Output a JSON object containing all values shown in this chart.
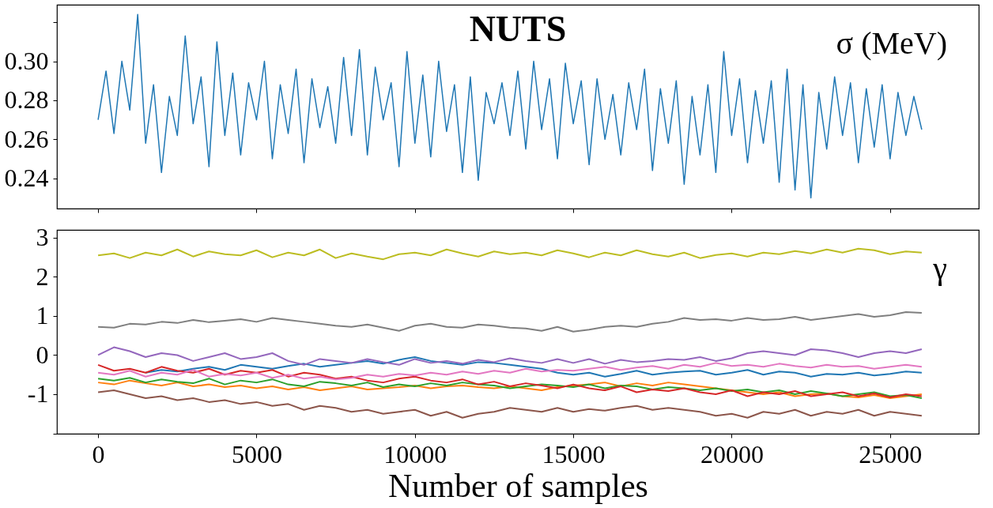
{
  "chart_data": [
    {
      "type": "line",
      "title": "NUTS",
      "annotations": [
        "σ (MeV)"
      ],
      "tick_labels": "y",
      "xlim": [
        -1300,
        27800
      ],
      "xticks": [
        0,
        5000,
        10000,
        15000,
        20000,
        25000
      ],
      "ylim": [
        0.2245,
        0.329
      ],
      "yticks": [
        {
          "value": 0.24,
          "label": "0.24"
        },
        {
          "value": 0.26,
          "label": "0.26"
        },
        {
          "value": 0.28,
          "label": "0.28"
        },
        {
          "value": 0.3,
          "label": "0.30"
        },
        {
          "value": 0.32,
          "label": null
        }
      ],
      "x": [
        0,
        250,
        500,
        750,
        1000,
        1250,
        1500,
        1750,
        2000,
        2250,
        2500,
        2750,
        3000,
        3250,
        3500,
        3750,
        4000,
        4250,
        4500,
        4750,
        5000,
        5250,
        5500,
        5750,
        6000,
        6250,
        6500,
        6750,
        7000,
        7250,
        7500,
        7750,
        8000,
        8250,
        8500,
        8750,
        9000,
        9250,
        9500,
        9750,
        10000,
        10250,
        10500,
        10750,
        11000,
        11250,
        11500,
        11750,
        12000,
        12250,
        12500,
        12750,
        13000,
        13250,
        13500,
        13750,
        14000,
        14250,
        14500,
        14750,
        15000,
        15250,
        15500,
        15750,
        16000,
        16250,
        16500,
        16750,
        17000,
        17250,
        17500,
        17750,
        18000,
        18250,
        18500,
        18750,
        19000,
        19250,
        19500,
        19750,
        20000,
        20250,
        20500,
        20750,
        21000,
        21250,
        21500,
        21750,
        22000,
        22250,
        22500,
        22750,
        23000,
        23250,
        23500,
        23750,
        24000,
        24250,
        24500,
        24750,
        25000,
        25250,
        25500,
        25750,
        26000
      ],
      "series": [
        {
          "color": "#1f77b4",
          "values": [
            0.27,
            0.295,
            0.263,
            0.3,
            0.275,
            0.324,
            0.258,
            0.288,
            0.243,
            0.282,
            0.262,
            0.313,
            0.268,
            0.292,
            0.246,
            0.31,
            0.262,
            0.294,
            0.252,
            0.289,
            0.27,
            0.3,
            0.25,
            0.288,
            0.263,
            0.296,
            0.248,
            0.291,
            0.266,
            0.287,
            0.258,
            0.302,
            0.262,
            0.306,
            0.252,
            0.297,
            0.27,
            0.289,
            0.246,
            0.305,
            0.258,
            0.293,
            0.251,
            0.3,
            0.264,
            0.288,
            0.243,
            0.292,
            0.239,
            0.284,
            0.268,
            0.289,
            0.262,
            0.295,
            0.255,
            0.3,
            0.265,
            0.291,
            0.25,
            0.299,
            0.268,
            0.29,
            0.247,
            0.291,
            0.26,
            0.283,
            0.252,
            0.289,
            0.265,
            0.296,
            0.244,
            0.286,
            0.258,
            0.29,
            0.237,
            0.282,
            0.252,
            0.288,
            0.243,
            0.305,
            0.262,
            0.291,
            0.248,
            0.285,
            0.258,
            0.29,
            0.238,
            0.296,
            0.234,
            0.288,
            0.23,
            0.284,
            0.255,
            0.292,
            0.262,
            0.289,
            0.248,
            0.286,
            0.256,
            0.288,
            0.25,
            0.284,
            0.262,
            0.282,
            0.265
          ]
        }
      ]
    },
    {
      "type": "line",
      "xlabel": "Number of samples",
      "annotations": [
        "γ"
      ],
      "xlim": [
        -1300,
        27800
      ],
      "xticks": [
        0,
        5000,
        10000,
        15000,
        20000,
        25000
      ],
      "ylim": [
        -2.01,
        3.2
      ],
      "yticks": [
        {
          "value": -2,
          "label": null
        },
        -1,
        0,
        1,
        2,
        3
      ],
      "x": [
        0,
        500,
        1000,
        1500,
        2000,
        2500,
        3000,
        3500,
        4000,
        4500,
        5000,
        5500,
        6000,
        6500,
        7000,
        7500,
        8000,
        8500,
        9000,
        9500,
        10000,
        10500,
        11000,
        11500,
        12000,
        12500,
        13000,
        13500,
        14000,
        14500,
        15000,
        15500,
        16000,
        16500,
        17000,
        17500,
        18000,
        18500,
        19000,
        19500,
        20000,
        20500,
        21000,
        21500,
        22000,
        22500,
        23000,
        23500,
        24000,
        24500,
        25000,
        25500,
        26000
      ],
      "series": [
        {
          "color": "#1f77b4",
          "values": [
            null,
            null,
            null,
            -0.45,
            -0.38,
            -0.42,
            -0.35,
            -0.3,
            -0.38,
            -0.25,
            -0.3,
            -0.35,
            -0.28,
            -0.22,
            -0.3,
            -0.25,
            -0.2,
            -0.15,
            -0.22,
            -0.12,
            -0.05,
            -0.15,
            -0.2,
            -0.25,
            -0.18,
            -0.2,
            -0.25,
            -0.3,
            -0.35,
            -0.45,
            -0.5,
            -0.45,
            -0.55,
            -0.48,
            -0.4,
            -0.5,
            -0.45,
            -0.42,
            -0.4,
            -0.5,
            -0.45,
            -0.38,
            -0.5,
            -0.42,
            -0.45,
            -0.55,
            -0.48,
            -0.5,
            -0.45,
            -0.52,
            -0.48,
            -0.42,
            -0.45
          ]
        },
        {
          "color": "#ff7f0e",
          "values": [
            -0.7,
            -0.75,
            -0.65,
            -0.72,
            -0.78,
            -0.7,
            -0.8,
            -0.75,
            -0.82,
            -0.78,
            -0.85,
            -0.8,
            -0.88,
            -0.82,
            -0.9,
            -0.85,
            -0.8,
            -0.88,
            -0.85,
            -0.82,
            -0.78,
            -0.85,
            -0.8,
            -0.78,
            -0.82,
            -0.85,
            -0.8,
            -0.85,
            -0.9,
            -0.82,
            -0.78,
            -0.75,
            -0.7,
            -0.8,
            -0.72,
            -0.78,
            -0.7,
            -0.75,
            -0.8,
            -0.85,
            -0.9,
            -0.95,
            -1.0,
            -0.95,
            -1.05,
            -1.0,
            -0.98,
            -1.05,
            -1.08,
            -1.02,
            -1.1,
            -1.05,
            -1.0
          ]
        },
        {
          "color": "#2ca02c",
          "values": [
            -0.6,
            -0.65,
            -0.58,
            -0.7,
            -0.62,
            -0.68,
            -0.72,
            -0.6,
            -0.75,
            -0.65,
            -0.7,
            -0.62,
            -0.75,
            -0.8,
            -0.68,
            -0.72,
            -0.78,
            -0.7,
            -0.82,
            -0.75,
            -0.8,
            -0.72,
            -0.78,
            -0.7,
            -0.75,
            -0.78,
            -0.85,
            -0.8,
            -0.75,
            -0.78,
            -0.82,
            -0.75,
            -0.85,
            -0.78,
            -0.8,
            -0.88,
            -0.82,
            -0.85,
            -0.9,
            -0.85,
            -0.92,
            -0.88,
            -0.95,
            -0.9,
            -1.0,
            -0.92,
            -0.98,
            -1.05,
            -1.0,
            -0.95,
            -1.05,
            -1.02,
            -1.1
          ]
        },
        {
          "color": "#d62728",
          "values": [
            -0.25,
            -0.4,
            -0.35,
            -0.45,
            -0.3,
            -0.4,
            -0.45,
            -0.35,
            -0.5,
            -0.4,
            -0.45,
            -0.38,
            -0.55,
            -0.45,
            -0.5,
            -0.6,
            -0.55,
            -0.65,
            -0.7,
            -0.6,
            -0.55,
            -0.65,
            -0.7,
            -0.62,
            -0.75,
            -0.68,
            -0.8,
            -0.72,
            -0.78,
            -0.85,
            -0.75,
            -0.85,
            -0.9,
            -0.8,
            -0.95,
            -0.88,
            -0.92,
            -0.85,
            -0.95,
            -1.0,
            -0.9,
            -1.05,
            -0.95,
            -1.0,
            -0.92,
            -1.05,
            -1.0,
            -0.95,
            -1.05,
            -0.98,
            -1.08,
            -1.0,
            -1.05
          ]
        },
        {
          "color": "#9467bd",
          "values": [
            0.0,
            0.2,
            0.1,
            -0.05,
            0.05,
            0.0,
            -0.15,
            -0.05,
            0.05,
            -0.1,
            -0.05,
            0.05,
            -0.15,
            -0.25,
            -0.1,
            -0.15,
            -0.2,
            -0.1,
            -0.18,
            -0.25,
            -0.1,
            -0.2,
            -0.15,
            -0.22,
            -0.12,
            -0.18,
            -0.08,
            -0.15,
            -0.2,
            -0.1,
            -0.2,
            -0.1,
            -0.22,
            -0.12,
            -0.18,
            -0.15,
            -0.1,
            -0.12,
            -0.05,
            -0.15,
            -0.08,
            0.05,
            0.1,
            0.05,
            0.0,
            0.15,
            0.12,
            0.05,
            -0.05,
            0.05,
            0.1,
            0.05,
            0.15
          ]
        },
        {
          "color": "#8c564b",
          "values": [
            -0.95,
            -0.9,
            -1.0,
            -1.1,
            -1.05,
            -1.15,
            -1.1,
            -1.2,
            -1.15,
            -1.25,
            -1.2,
            -1.3,
            -1.25,
            -1.4,
            -1.3,
            -1.35,
            -1.45,
            -1.4,
            -1.5,
            -1.45,
            -1.4,
            -1.55,
            -1.45,
            -1.6,
            -1.5,
            -1.45,
            -1.35,
            -1.4,
            -1.45,
            -1.35,
            -1.45,
            -1.38,
            -1.42,
            -1.35,
            -1.3,
            -1.4,
            -1.35,
            -1.4,
            -1.45,
            -1.55,
            -1.5,
            -1.6,
            -1.45,
            -1.5,
            -1.4,
            -1.55,
            -1.45,
            -1.5,
            -1.4,
            -1.55,
            -1.45,
            -1.5,
            -1.55
          ]
        },
        {
          "color": "#e377c2",
          "values": [
            -0.45,
            -0.5,
            -0.4,
            -0.55,
            -0.45,
            -0.5,
            -0.38,
            -0.55,
            -0.48,
            -0.52,
            -0.45,
            -0.58,
            -0.5,
            -0.6,
            -0.55,
            -0.62,
            -0.58,
            -0.5,
            -0.55,
            -0.48,
            -0.52,
            -0.45,
            -0.5,
            -0.42,
            -0.48,
            -0.4,
            -0.45,
            -0.35,
            -0.42,
            -0.38,
            -0.4,
            -0.35,
            -0.3,
            -0.38,
            -0.32,
            -0.28,
            -0.35,
            -0.25,
            -0.3,
            -0.2,
            -0.28,
            -0.25,
            -0.3,
            -0.22,
            -0.28,
            -0.32,
            -0.25,
            -0.3,
            -0.28,
            -0.35,
            -0.3,
            -0.25,
            -0.3
          ]
        },
        {
          "color": "#7f7f7f",
          "values": [
            0.72,
            0.7,
            0.8,
            0.78,
            0.85,
            0.82,
            0.9,
            0.84,
            0.88,
            0.92,
            0.85,
            0.95,
            0.9,
            0.85,
            0.8,
            0.75,
            0.72,
            0.78,
            0.7,
            0.62,
            0.75,
            0.8,
            0.72,
            0.7,
            0.78,
            0.75,
            0.7,
            0.68,
            0.62,
            0.72,
            0.6,
            0.65,
            0.72,
            0.75,
            0.72,
            0.8,
            0.85,
            0.95,
            0.9,
            0.92,
            0.88,
            0.95,
            0.9,
            0.92,
            0.98,
            0.9,
            0.95,
            1.0,
            1.05,
            0.98,
            1.02,
            1.1,
            1.08
          ]
        },
        {
          "color": "#bcbd22",
          "values": [
            2.55,
            2.6,
            2.48,
            2.62,
            2.55,
            2.7,
            2.52,
            2.65,
            2.58,
            2.55,
            2.68,
            2.5,
            2.62,
            2.55,
            2.7,
            2.48,
            2.6,
            2.52,
            2.45,
            2.58,
            2.62,
            2.55,
            2.7,
            2.6,
            2.52,
            2.65,
            2.58,
            2.62,
            2.55,
            2.68,
            2.6,
            2.5,
            2.62,
            2.55,
            2.68,
            2.58,
            2.52,
            2.62,
            2.48,
            2.56,
            2.6,
            2.52,
            2.62,
            2.58,
            2.66,
            2.6,
            2.7,
            2.62,
            2.72,
            2.68,
            2.58,
            2.65,
            2.62
          ]
        }
      ]
    }
  ]
}
